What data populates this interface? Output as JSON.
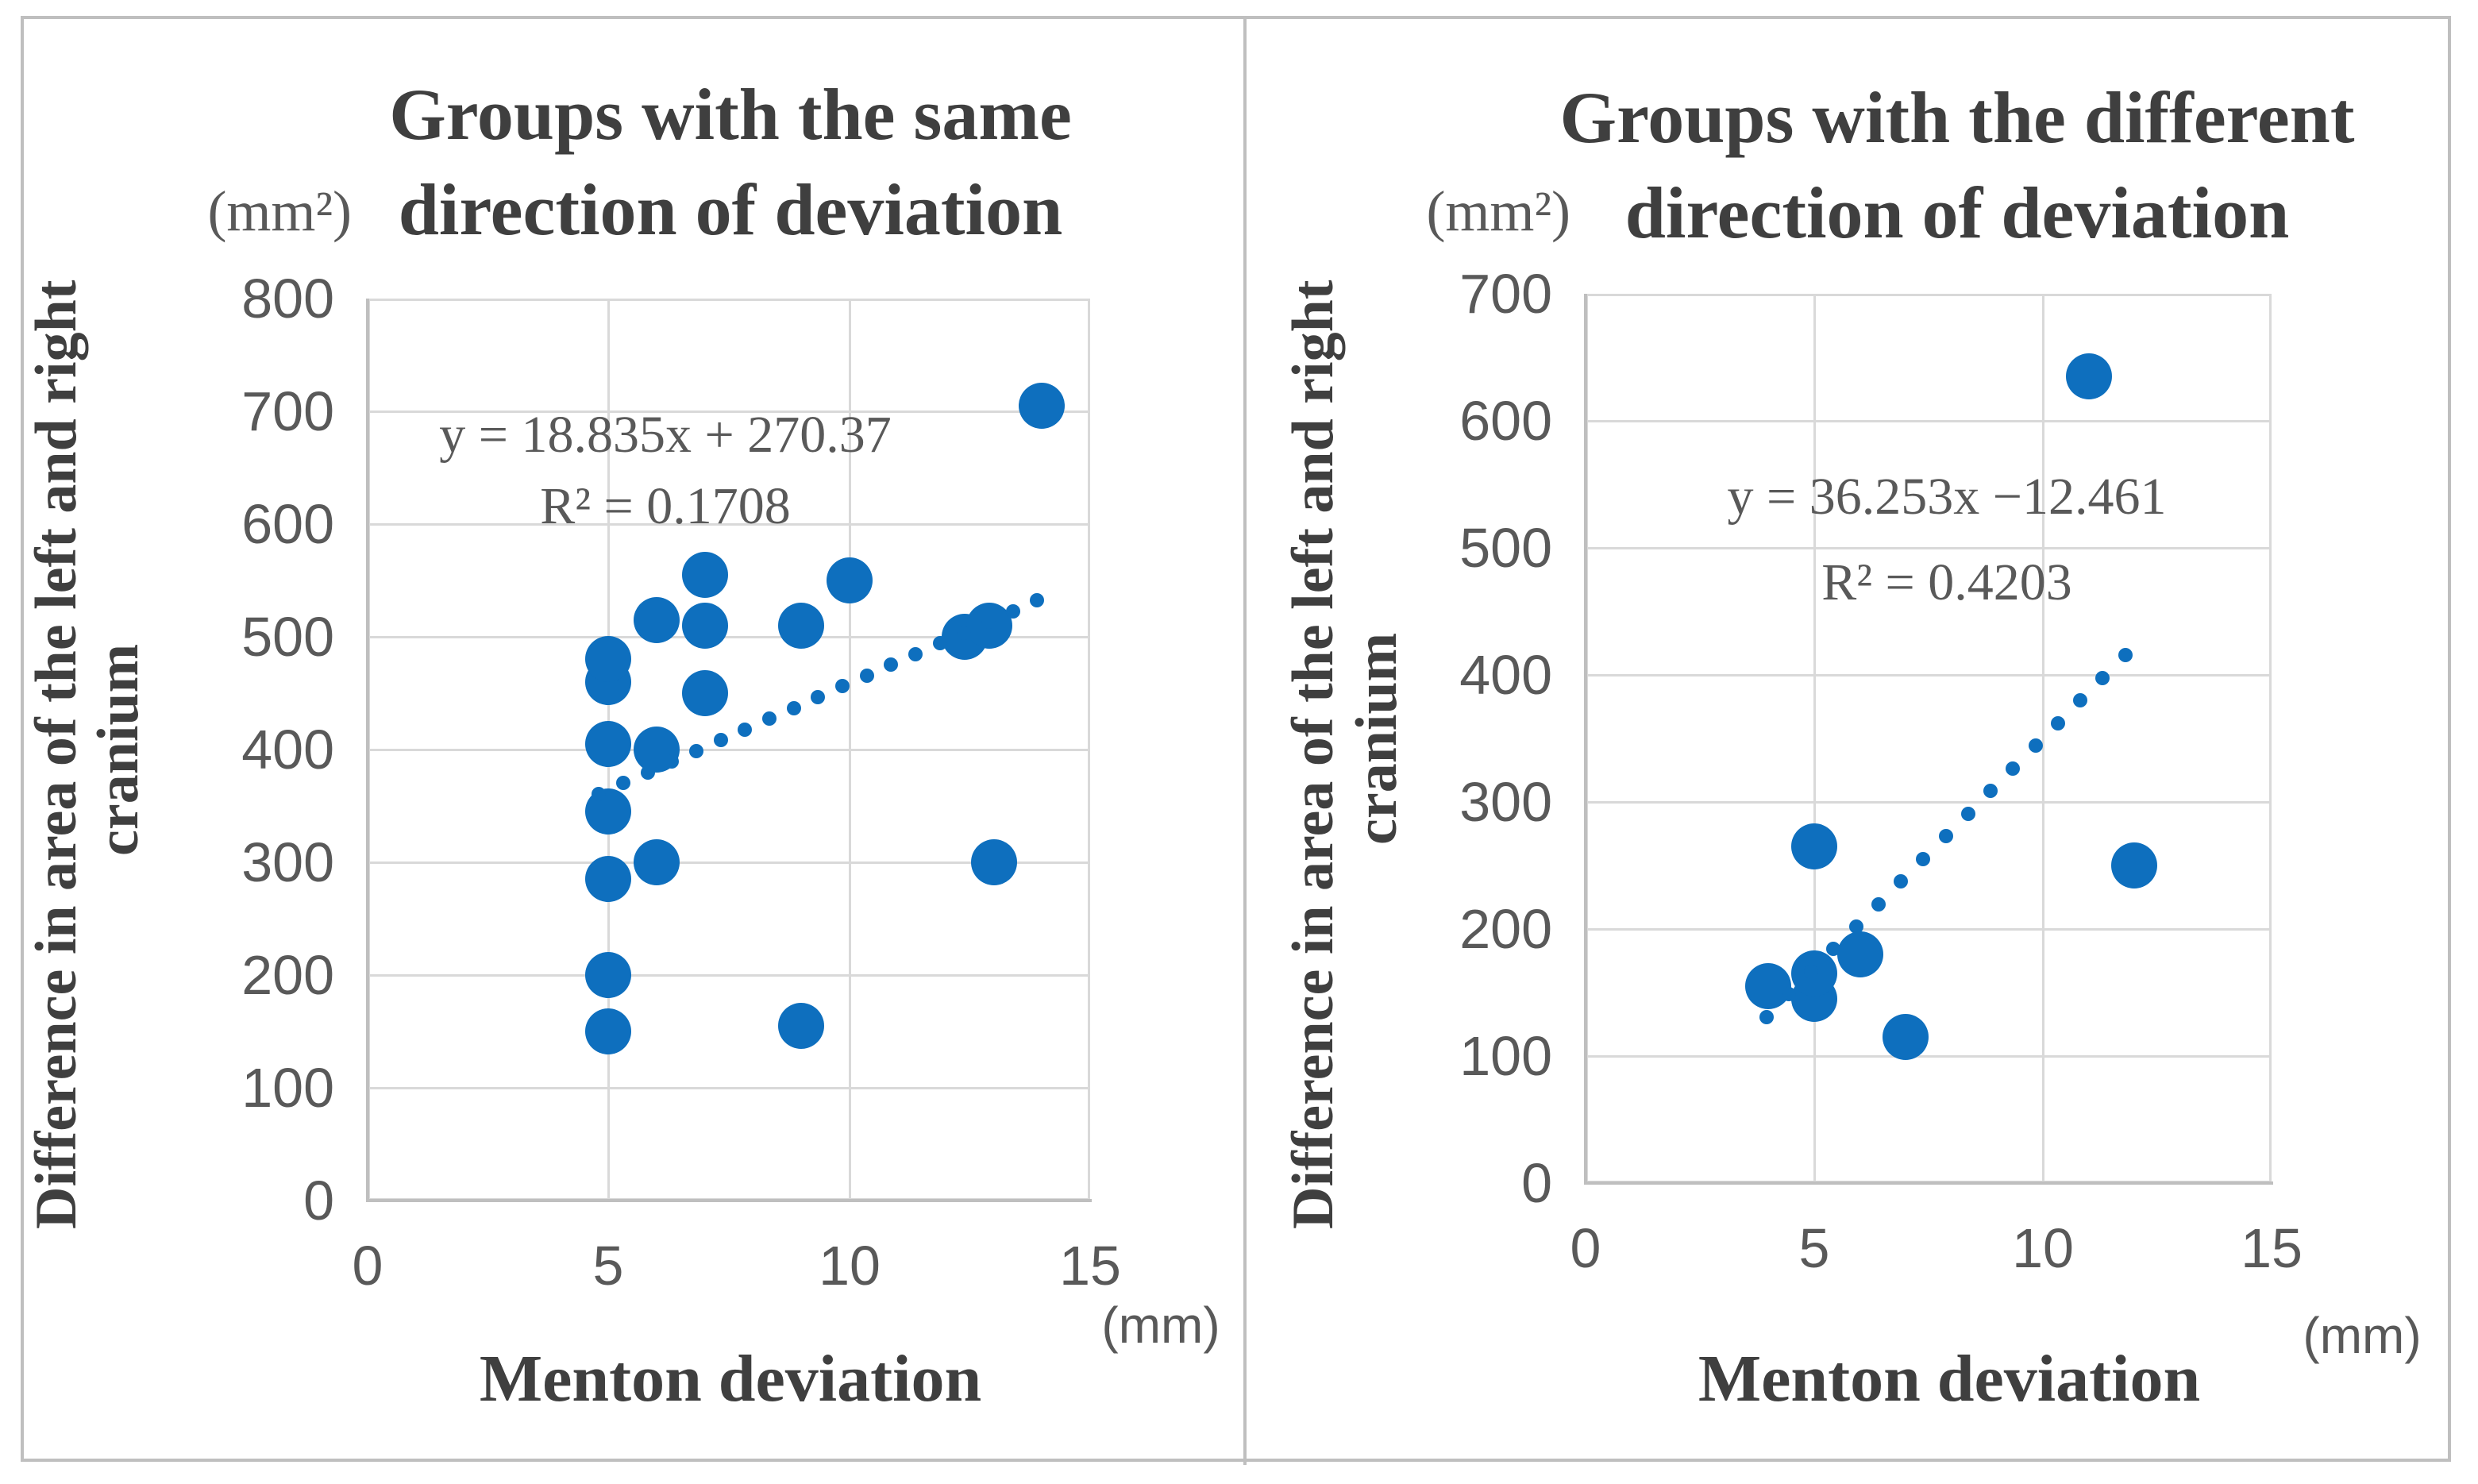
{
  "figure": {
    "background_color": "#ffffff",
    "frame_color": "#bfbfbf",
    "gridline_color": "#d9d9d9",
    "axis_line_color": "#bfbfbf",
    "point_color": "#0e6fbe",
    "text_color": "#595959",
    "title_color": "#3f3f3f"
  },
  "chart_data": [
    {
      "type": "scatter",
      "title_line1": "Groups with the same",
      "title_line2": "direction of deviation",
      "y_unit": "(mm²)",
      "x_unit": "(mm)",
      "ylabel_line1": "Difference in area of the left and right",
      "ylabel_line2": "cranium",
      "xlabel": "Menton deviation",
      "equation": "y = 18.835x + 270.37",
      "r_squared": "R² = 0.1708",
      "xlim": [
        0,
        15
      ],
      "ylim": [
        0,
        800
      ],
      "x_ticks": [
        0,
        5,
        10,
        15
      ],
      "y_ticks": [
        0,
        100,
        200,
        300,
        400,
        500,
        600,
        700,
        800
      ],
      "grid": true,
      "legend": false,
      "points": [
        [
          5,
          150
        ],
        [
          5,
          200
        ],
        [
          5,
          285
        ],
        [
          5,
          345
        ],
        [
          5,
          405
        ],
        [
          5,
          460
        ],
        [
          5,
          480
        ],
        [
          6,
          300
        ],
        [
          6,
          400
        ],
        [
          6,
          515
        ],
        [
          7,
          450
        ],
        [
          7,
          510
        ],
        [
          7,
          555
        ],
        [
          9,
          155
        ],
        [
          9,
          510
        ],
        [
          10,
          550
        ],
        [
          12.4,
          500
        ],
        [
          12.9,
          510
        ],
        [
          13,
          300
        ],
        [
          14,
          705
        ]
      ],
      "trendline": {
        "slope": 18.835,
        "intercept": 270.37,
        "x_start": 4.8,
        "x_end": 13.9,
        "style": "dotted"
      }
    },
    {
      "type": "scatter",
      "title_line1": "Groups with the different",
      "title_line2": "direction of deviation",
      "y_unit": "(mm²)",
      "x_unit": "(mm)",
      "ylabel_line1": "Difference in area of the left and right",
      "ylabel_line2": "cranium",
      "xlabel": "Menton deviation",
      "equation": "y = 36.253x  −12.461",
      "r_squared": "R² = 0.4203",
      "xlim": [
        0,
        15
      ],
      "ylim": [
        0,
        700
      ],
      "x_ticks": [
        0,
        5,
        10,
        15
      ],
      "y_ticks": [
        0,
        100,
        200,
        300,
        400,
        500,
        600,
        700
      ],
      "grid": true,
      "legend": false,
      "points": [
        [
          4,
          155
        ],
        [
          5,
          145
        ],
        [
          5,
          165
        ],
        [
          5,
          265
        ],
        [
          6,
          180
        ],
        [
          7,
          115
        ],
        [
          11,
          635
        ],
        [
          12,
          250
        ]
      ],
      "trendline": {
        "slope": 36.253,
        "intercept": -12.461,
        "x_start": 3.95,
        "x_end": 11.8,
        "style": "dotted"
      }
    }
  ]
}
